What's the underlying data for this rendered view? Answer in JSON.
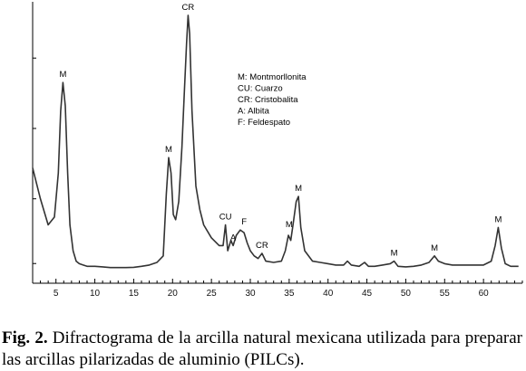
{
  "chart_data": {
    "type": "line",
    "title": "",
    "xlabel": "",
    "ylabel": "",
    "xlim": [
      2,
      65
    ],
    "ylim": [
      0,
      100
    ],
    "x_ticks": [
      5,
      10,
      15,
      20,
      25,
      30,
      35,
      40,
      45,
      50,
      55,
      60
    ],
    "grid": false,
    "series": [
      {
        "x": [
          2,
          3,
          4,
          4.8,
          5.3,
          5.6,
          5.9,
          6.2,
          6.5,
          6.8,
          7.2,
          7.6,
          8,
          8.5,
          9,
          10,
          11,
          12,
          13,
          14,
          15,
          16,
          17,
          18,
          18.8,
          19.2,
          19.5,
          19.8,
          20.1,
          20.4,
          20.8,
          21.2,
          21.5,
          21.8,
          22,
          22.2,
          22.5,
          23,
          23.5,
          24,
          25,
          26,
          26.5,
          26.8,
          27.1,
          27.5,
          27.8,
          28.2,
          28.7,
          29.2,
          29.6,
          30,
          30.5,
          31,
          31.5,
          32,
          33,
          34,
          34.5,
          34.9,
          35.2,
          35.5,
          35.9,
          36.2,
          36.5,
          37,
          38,
          39,
          40,
          41,
          42,
          42.5,
          43,
          44,
          44.7,
          45.2,
          46,
          47,
          48,
          48.5,
          49,
          50,
          51,
          52,
          53,
          53.7,
          54.2,
          55,
          56,
          57,
          58,
          59,
          60,
          61,
          61.5,
          61.9,
          62.3,
          62.8,
          63.5,
          64,
          64.5
        ],
        "y": [
          40,
          28,
          18,
          21,
          38,
          62,
          73,
          64,
          38,
          18,
          8,
          4,
          3,
          2.5,
          2,
          2,
          1.8,
          1.5,
          1.5,
          1.5,
          1.6,
          2,
          2.5,
          3.5,
          6,
          30,
          44,
          38,
          22,
          20,
          27,
          48,
          68,
          88,
          99,
          92,
          62,
          33,
          24,
          18,
          13,
          10,
          10,
          18,
          8,
          12,
          10,
          14,
          16,
          15,
          11,
          8,
          6,
          5,
          7,
          4,
          3.5,
          4,
          8,
          14,
          12,
          18,
          27,
          29,
          17,
          8,
          4,
          3.5,
          3,
          2.5,
          2.5,
          4,
          2.5,
          2,
          3.5,
          2,
          2,
          2.5,
          3,
          4,
          2,
          1.8,
          2,
          2.5,
          3.5,
          6,
          4,
          3,
          2.5,
          2.5,
          2.5,
          2.5,
          2.5,
          4,
          10,
          17,
          9,
          3,
          2,
          2,
          2
        ]
      }
    ],
    "peak_labels": [
      {
        "text": "M",
        "x": 5.9,
        "y": 73
      },
      {
        "text": "CR",
        "x": 22,
        "y": 99
      },
      {
        "text": "M",
        "x": 19.5,
        "y": 44
      },
      {
        "text": "CU",
        "x": 26.8,
        "y": 18
      },
      {
        "text": "A",
        "x": 27.8,
        "y": 10
      },
      {
        "text": "F",
        "x": 29.2,
        "y": 16
      },
      {
        "text": "CR",
        "x": 31.5,
        "y": 7
      },
      {
        "text": "M",
        "x": 35,
        "y": 15
      },
      {
        "text": "M",
        "x": 36.2,
        "y": 29
      },
      {
        "text": "M",
        "x": 48.5,
        "y": 4
      },
      {
        "text": "M",
        "x": 53.7,
        "y": 6
      },
      {
        "text": "M",
        "x": 61.9,
        "y": 17
      }
    ],
    "legend": {
      "placement": "upper-center",
      "entries": [
        "M: Montmorllonita",
        "CU: Cuarzo",
        "CR: Cristobalita",
        "A: Albita",
        "F: Feldespato"
      ]
    },
    "colors": {
      "line": "#333333",
      "axis": "#000000"
    }
  },
  "caption": {
    "label": "Fig. 2.",
    "text": "Difractograma de la arcilla natural mexicana utilizada para preparar las arcillas pilarizadas de aluminio (PILCs)."
  }
}
